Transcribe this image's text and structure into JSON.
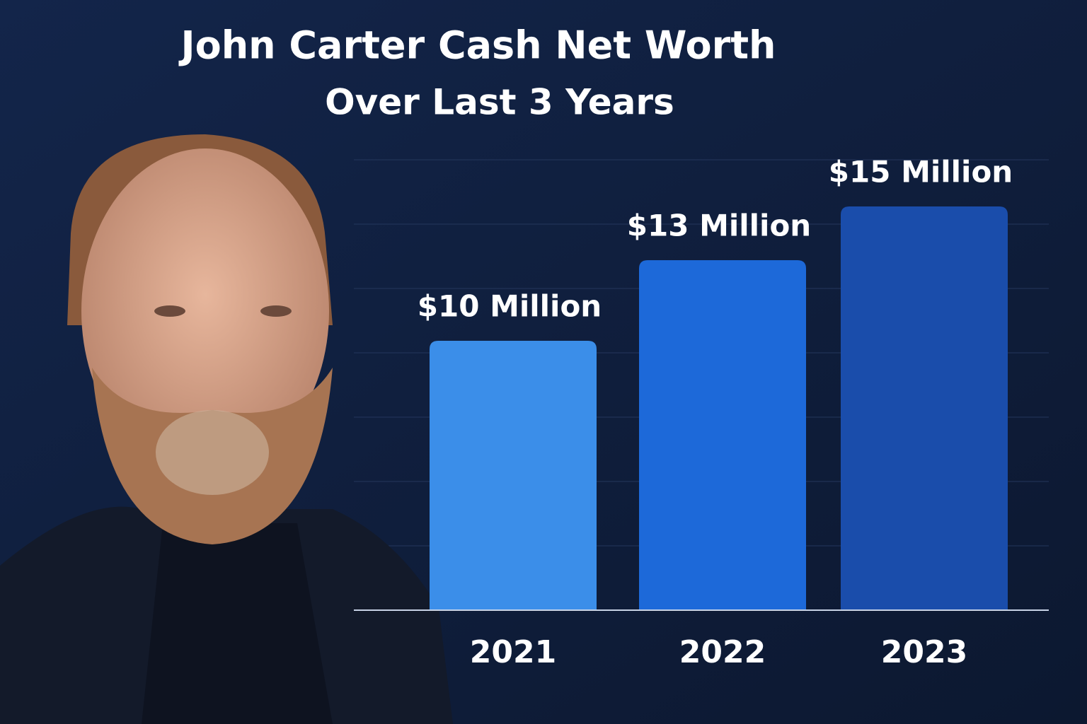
{
  "chart_data": {
    "type": "bar",
    "title": "John Carter Cash Net Worth",
    "subtitle": "Over Last 3 Years",
    "categories": [
      "2021",
      "2022",
      "2023"
    ],
    "values": [
      10,
      13,
      15
    ],
    "value_labels": [
      "$10 Million",
      "$13 Million",
      "$15 Million"
    ],
    "colors": [
      "#3b8ee9",
      "#1d69d9",
      "#1a4dab"
    ]
  }
}
